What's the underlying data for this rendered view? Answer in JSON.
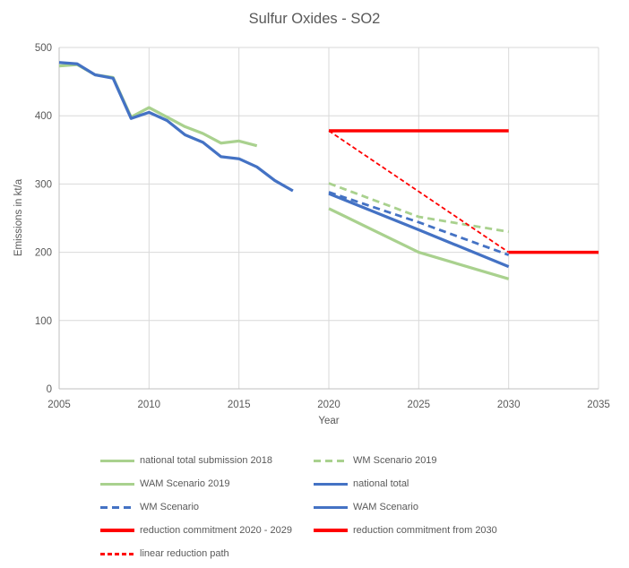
{
  "chart_data": {
    "type": "line",
    "title": "Sulfur Oxides - SO2",
    "xlabel": "Year",
    "ylabel": "Emissions in kt/a",
    "xlim": [
      2005,
      2035
    ],
    "ylim": [
      0,
      500
    ],
    "xticks": [
      2005,
      2010,
      2015,
      2020,
      2025,
      2030,
      2035
    ],
    "yticks": [
      0,
      100,
      200,
      300,
      400,
      500
    ],
    "grid": true,
    "legend_position": "bottom",
    "series": [
      {
        "name": "national total submission 2018",
        "color": "#A9D18E",
        "style": "solid",
        "width": 3.25,
        "dash": null,
        "x": [
          2005,
          2006,
          2007,
          2008,
          2009,
          2010,
          2011,
          2012,
          2013,
          2014,
          2015,
          2016
        ],
        "y": [
          473,
          475,
          460,
          456,
          398,
          412,
          398,
          384,
          374,
          360,
          363,
          356
        ]
      },
      {
        "name": "WM Scenario 2019",
        "color": "#A9D18E",
        "style": "dashed",
        "width": 2.8,
        "dash": "8 5",
        "x": [
          2020,
          2025,
          2030
        ],
        "y": [
          301,
          252,
          230
        ]
      },
      {
        "name": "WAM Scenario 2019",
        "color": "#A9D18E",
        "style": "solid",
        "width": 3.25,
        "dash": null,
        "x": [
          2020,
          2025,
          2030
        ],
        "y": [
          264,
          200,
          161
        ]
      },
      {
        "name": "national total",
        "color": "#4472C4",
        "style": "solid",
        "width": 3.25,
        "dash": null,
        "x": [
          2005,
          2006,
          2007,
          2008,
          2009,
          2010,
          2011,
          2012,
          2013,
          2014,
          2015,
          2016,
          2017,
          2018
        ],
        "y": [
          478,
          476,
          460,
          455,
          396,
          405,
          393,
          372,
          361,
          340,
          337,
          325,
          305,
          290
        ]
      },
      {
        "name": "WM Scenario",
        "color": "#4472C4",
        "style": "dashed",
        "width": 2.8,
        "dash": "8 5",
        "x": [
          2020,
          2025,
          2030
        ],
        "y": [
          288,
          244,
          196
        ]
      },
      {
        "name": "WAM Scenario",
        "color": "#4472C4",
        "style": "solid",
        "width": 3.25,
        "dash": null,
        "x": [
          2020,
          2025,
          2030
        ],
        "y": [
          286,
          233,
          179
        ]
      },
      {
        "name": "reduction commitment 2020 - 2029",
        "color": "#FF0000",
        "style": "solid",
        "width": 3.5,
        "dash": null,
        "x": [
          2020,
          2030
        ],
        "y": [
          378,
          378
        ]
      },
      {
        "name": "reduction commitment from 2030",
        "color": "#FF0000",
        "style": "solid",
        "width": 3.5,
        "dash": null,
        "x": [
          2030,
          2035
        ],
        "y": [
          200,
          200
        ]
      },
      {
        "name": "linear reduction path",
        "color": "#FF0000",
        "style": "dashed",
        "width": 1.8,
        "dash": "5 3",
        "x": [
          2020,
          2030
        ],
        "y": [
          378,
          200
        ]
      }
    ]
  },
  "colors": {
    "grid": "#D9D9D9",
    "axis_line": "#BFBFBF",
    "text": "#595959"
  }
}
